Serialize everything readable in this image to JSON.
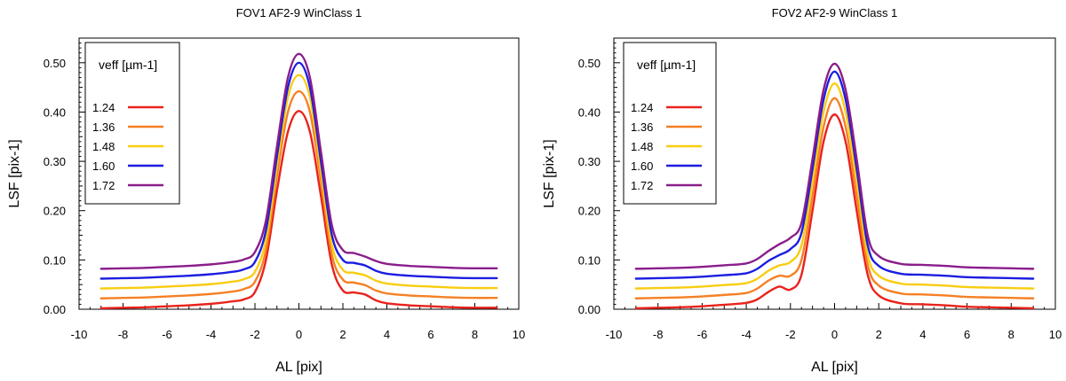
{
  "chart_data": [
    {
      "type": "line",
      "title": "FOV1 AF2-9 WinClass 1",
      "xlabel": "AL [pix]",
      "ylabel": "LSF [pix-1]",
      "xlim": [
        -10,
        10
      ],
      "ylim": [
        0.0,
        0.55
      ],
      "x_ticks": [
        -10,
        -8,
        -6,
        -4,
        -2,
        0,
        2,
        4,
        6,
        8,
        10
      ],
      "y_ticks": [
        0.0,
        0.1,
        0.2,
        0.3,
        0.4,
        0.5
      ],
      "y_tick_labels": [
        "0.00",
        "0.10",
        "0.20",
        "0.30",
        "0.40",
        "0.50"
      ],
      "grid": false,
      "legend_position": "top-left",
      "legend_title": "veff [µm-1]",
      "x": [
        -9,
        -8,
        -7,
        -6,
        -5,
        -4,
        -3,
        -2.5,
        -2,
        -1.5,
        -1,
        -0.5,
        0,
        0.5,
        1,
        1.5,
        2,
        2.5,
        3,
        3.5,
        4,
        5,
        6,
        7,
        8,
        9
      ],
      "series": [
        {
          "name": "1.24",
          "color": "#e8231c",
          "values": [
            0.002,
            0.003,
            0.004,
            0.006,
            0.008,
            0.011,
            0.016,
            0.02,
            0.035,
            0.1,
            0.24,
            0.36,
            0.402,
            0.36,
            0.23,
            0.09,
            0.038,
            0.034,
            0.03,
            0.018,
            0.012,
            0.008,
            0.006,
            0.004,
            0.003,
            0.003
          ]
        },
        {
          "name": "1.36",
          "color": "#f58025",
          "values": [
            0.022,
            0.023,
            0.024,
            0.026,
            0.028,
            0.031,
            0.036,
            0.041,
            0.056,
            0.12,
            0.27,
            0.4,
            0.442,
            0.4,
            0.26,
            0.11,
            0.06,
            0.054,
            0.049,
            0.038,
            0.032,
            0.028,
            0.026,
            0.024,
            0.023,
            0.023
          ]
        },
        {
          "name": "1.48",
          "color": "#f8cd11",
          "values": [
            0.042,
            0.043,
            0.044,
            0.046,
            0.048,
            0.051,
            0.056,
            0.061,
            0.076,
            0.14,
            0.29,
            0.43,
            0.475,
            0.43,
            0.28,
            0.13,
            0.08,
            0.074,
            0.069,
            0.058,
            0.052,
            0.048,
            0.046,
            0.044,
            0.043,
            0.043
          ]
        },
        {
          "name": "1.60",
          "color": "#1b1ee0",
          "values": [
            0.062,
            0.063,
            0.064,
            0.066,
            0.068,
            0.071,
            0.076,
            0.081,
            0.096,
            0.16,
            0.31,
            0.45,
            0.5,
            0.45,
            0.3,
            0.15,
            0.1,
            0.094,
            0.089,
            0.078,
            0.072,
            0.068,
            0.066,
            0.064,
            0.063,
            0.063
          ]
        },
        {
          "name": "1.72",
          "color": "#8a1e8a",
          "values": [
            0.082,
            0.083,
            0.084,
            0.086,
            0.088,
            0.091,
            0.096,
            0.101,
            0.116,
            0.18,
            0.33,
            0.47,
            0.518,
            0.47,
            0.32,
            0.17,
            0.12,
            0.114,
            0.107,
            0.098,
            0.092,
            0.088,
            0.086,
            0.084,
            0.083,
            0.083
          ]
        }
      ]
    },
    {
      "type": "line",
      "title": "FOV2 AF2-9 WinClass 1",
      "xlabel": "AL [pix]",
      "ylabel": "LSF [pix-1]",
      "xlim": [
        -10,
        10
      ],
      "ylim": [
        0.0,
        0.55
      ],
      "x_ticks": [
        -10,
        -8,
        -6,
        -4,
        -2,
        0,
        2,
        4,
        6,
        8,
        10
      ],
      "y_ticks": [
        0.0,
        0.1,
        0.2,
        0.3,
        0.4,
        0.5
      ],
      "y_tick_labels": [
        "0.00",
        "0.10",
        "0.20",
        "0.30",
        "0.40",
        "0.50"
      ],
      "grid": false,
      "legend_position": "top-left",
      "legend_title": "veff [µm-1]",
      "x": [
        -9,
        -8,
        -7,
        -6,
        -5,
        -4,
        -3.5,
        -3,
        -2.5,
        -2,
        -1.5,
        -1,
        -0.5,
        0,
        0.5,
        1,
        1.5,
        2,
        3,
        4,
        5,
        6,
        7,
        8,
        9
      ],
      "series": [
        {
          "name": "1.24",
          "color": "#e8231c",
          "values": [
            0.002,
            0.003,
            0.004,
            0.006,
            0.009,
            0.013,
            0.02,
            0.035,
            0.046,
            0.04,
            0.07,
            0.2,
            0.34,
            0.395,
            0.34,
            0.2,
            0.07,
            0.028,
            0.012,
            0.01,
            0.008,
            0.005,
            0.004,
            0.003,
            0.002
          ]
        },
        {
          "name": "1.36",
          "color": "#f58025",
          "values": [
            0.022,
            0.023,
            0.024,
            0.026,
            0.029,
            0.033,
            0.042,
            0.058,
            0.068,
            0.068,
            0.1,
            0.23,
            0.37,
            0.428,
            0.37,
            0.23,
            0.09,
            0.048,
            0.032,
            0.03,
            0.028,
            0.025,
            0.024,
            0.023,
            0.022
          ]
        },
        {
          "name": "1.48",
          "color": "#f8cd11",
          "values": [
            0.042,
            0.043,
            0.044,
            0.046,
            0.049,
            0.053,
            0.062,
            0.078,
            0.089,
            0.096,
            0.13,
            0.26,
            0.4,
            0.458,
            0.4,
            0.26,
            0.11,
            0.068,
            0.052,
            0.05,
            0.048,
            0.045,
            0.044,
            0.043,
            0.042
          ]
        },
        {
          "name": "1.60",
          "color": "#1b1ee0",
          "values": [
            0.062,
            0.063,
            0.064,
            0.066,
            0.069,
            0.073,
            0.082,
            0.098,
            0.11,
            0.122,
            0.155,
            0.285,
            0.425,
            0.482,
            0.425,
            0.285,
            0.13,
            0.088,
            0.072,
            0.07,
            0.068,
            0.065,
            0.064,
            0.063,
            0.062
          ]
        },
        {
          "name": "1.72",
          "color": "#8a1e8a",
          "values": [
            0.082,
            0.083,
            0.084,
            0.086,
            0.089,
            0.093,
            0.102,
            0.118,
            0.132,
            0.145,
            0.175,
            0.305,
            0.445,
            0.498,
            0.445,
            0.305,
            0.15,
            0.108,
            0.092,
            0.09,
            0.088,
            0.085,
            0.084,
            0.083,
            0.082
          ]
        }
      ]
    }
  ]
}
